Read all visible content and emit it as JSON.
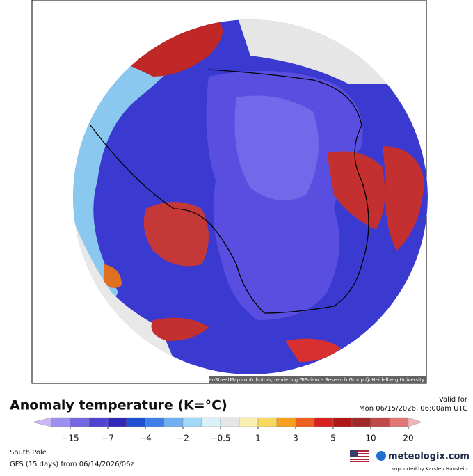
{
  "map": {
    "attribution": "Map data © OpenStreetMap contributors, rendering GIScience Research Group @ Heidelberg University"
  },
  "legend": {
    "title": "Anomaly temperature (K=°C)",
    "valid_label": "Valid for",
    "valid_time": "Mon 06/15/2026, 06:00am UTC",
    "ticks": [
      "−15",
      "−7",
      "−4",
      "−2",
      "−0.5",
      "1",
      "3",
      "5",
      "10",
      "20"
    ],
    "colors": [
      "#cbb8f2",
      "#9d8ef0",
      "#7566e4",
      "#4f43d2",
      "#3128b8",
      "#2050d0",
      "#3f80e8",
      "#70b0f2",
      "#a2d8f8",
      "#d8f0f8",
      "#e6e6e6",
      "#f8f0b0",
      "#f8d860",
      "#f6a020",
      "#ee6020",
      "#d82020",
      "#b01818",
      "#a02828",
      "#c04848",
      "#e07878",
      "#f4b4b4"
    ]
  },
  "footer": {
    "region": "South Pole",
    "model": "GFS (15 days) from  06/14/2026/06z",
    "brand": "meteologix.com",
    "support": "supported by Karsten Haustein"
  }
}
